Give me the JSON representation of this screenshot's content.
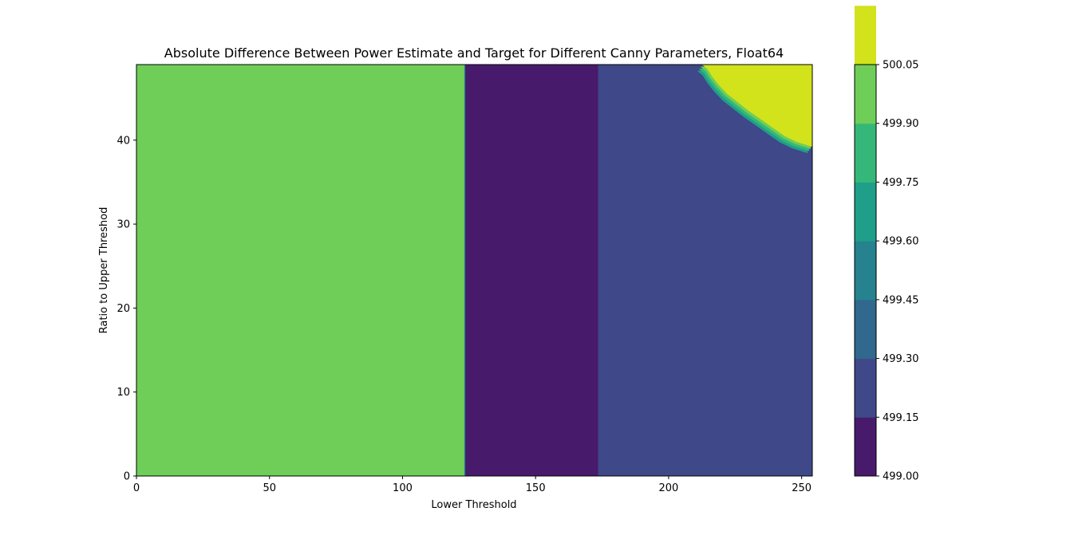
{
  "chart_data": {
    "type": "heatmap",
    "subtype": "filled-contour",
    "title": "Absolute Difference Between Power Estimate and Target for Different Canny Parameters, Float64",
    "xlabel": "Lower Threshold",
    "ylabel": "Ratio to Upper Threshod",
    "xlim": [
      0,
      254
    ],
    "ylim": [
      0,
      49
    ],
    "x_ticks": [
      0,
      50,
      100,
      150,
      200,
      250
    ],
    "y_ticks": [
      0,
      10,
      20,
      30,
      40
    ],
    "grid": false,
    "colorbar": {
      "levels": [
        499.0,
        499.15,
        499.3,
        499.45,
        499.6,
        499.75,
        499.9,
        500.05
      ],
      "tick_labels": [
        "499.00",
        "499.15",
        "499.30",
        "499.45",
        "499.60",
        "499.75",
        "499.90",
        "500.05"
      ],
      "colors": [
        "#481a6c",
        "#3f4889",
        "#31688e",
        "#26828e",
        "#1f9e89",
        "#35b779",
        "#6ece58",
        "#d2e21b"
      ]
    },
    "regions": [
      {
        "x_range": [
          0,
          123.2
        ],
        "y_range": [
          0,
          49
        ],
        "value_band": [
          499.75,
          499.9
        ],
        "color": "#6ece58"
      },
      {
        "x_range": [
          123.2,
          123.6
        ],
        "y_range": [
          0,
          49
        ],
        "value_band": [
          499.45,
          499.6
        ],
        "color": "#26828e"
      },
      {
        "x_range": [
          123.6,
          173.5
        ],
        "y_range": [
          0,
          49
        ],
        "value_band": [
          499.0,
          499.15
        ],
        "color": "#481a6c"
      },
      {
        "x_range": [
          173.5,
          254
        ],
        "y_range": [
          0,
          49
        ],
        "value_band": [
          499.15,
          499.3
        ],
        "color": "#3f4889"
      }
    ],
    "top_right_boundary": {
      "value_band": [
        499.9,
        500.05
      ],
      "color": "#d2e21b",
      "points": [
        [
          212.5,
          49
        ],
        [
          214.5,
          48.5
        ],
        [
          216.5,
          47.5
        ],
        [
          219,
          46.5
        ],
        [
          222,
          45.5
        ],
        [
          226,
          44.5
        ],
        [
          230,
          43.5
        ],
        [
          234.5,
          42.5
        ],
        [
          239,
          41.5
        ],
        [
          243.5,
          40.5
        ],
        [
          248,
          39.8
        ],
        [
          254,
          39.2
        ]
      ]
    }
  }
}
